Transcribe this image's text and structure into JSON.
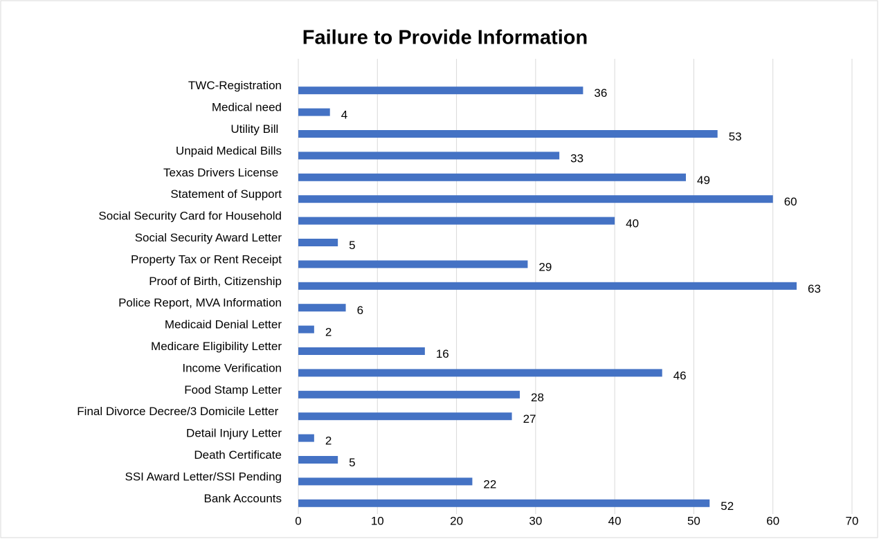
{
  "chart_data": {
    "type": "hbar",
    "title": "Failure to Provide Information",
    "categories": [
      "TWC-Registration",
      "Medical need",
      "Utility Bill ",
      "Unpaid Medical Bills",
      "Texas Drivers License ",
      "Statement of Support",
      "Social Security Card for Household",
      "Social Security Award Letter",
      "Property Tax or Rent Receipt",
      "Proof of Birth, Citizenship",
      "Police Report, MVA Information",
      "Medicaid Denial Letter",
      "Medicare Eligibility Letter",
      "Income Verification",
      "Food Stamp Letter",
      "Final Divorce Decree/3 Domicile Letter ",
      "Detail Injury Letter",
      "Death Certificate",
      "SSI Award Letter/SSI Pending",
      "Bank Accounts"
    ],
    "values": [
      36,
      4,
      53,
      33,
      49,
      60,
      40,
      5,
      29,
      63,
      6,
      2,
      16,
      46,
      28,
      27,
      2,
      5,
      22,
      52
    ],
    "color": "#4472c4",
    "xlim": [
      0,
      70
    ],
    "xticks": [
      0,
      10,
      20,
      30,
      40,
      50,
      60,
      70
    ],
    "grid": true
  }
}
